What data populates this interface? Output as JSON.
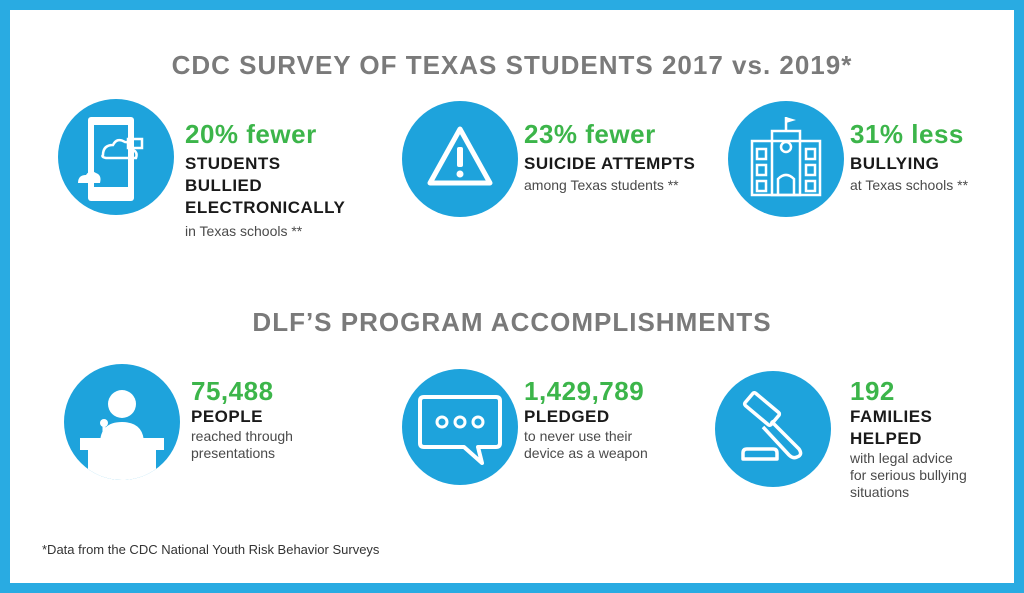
{
  "survey": {
    "title": "CDC SURVEY OF TEXAS STUDENTS 2017 vs. 2019*",
    "stats": [
      {
        "value": "20% fewer",
        "label_lines": [
          "STUDENTS",
          "BULLIED",
          "ELECTRONICALLY"
        ],
        "note": "in Texas schools **",
        "icon": "cyberbullying-phone-icon"
      },
      {
        "value": "23% fewer",
        "label_lines": [
          "SUICIDE ATTEMPTS"
        ],
        "note": "among Texas students **",
        "icon": "warning-triangle-icon"
      },
      {
        "value": "31% less",
        "label_lines": [
          "BULLYING"
        ],
        "note": "at Texas schools **",
        "icon": "school-building-icon"
      }
    ]
  },
  "program": {
    "title": "DLF’S PROGRAM ACCOMPLISHMENTS",
    "stats": [
      {
        "value": "75,488",
        "label_lines": [
          "PEOPLE"
        ],
        "note_lines": [
          "reached through",
          "presentations"
        ],
        "icon": "presenter-podium-icon"
      },
      {
        "value": "1,429,789",
        "label_lines": [
          "PLEDGED"
        ],
        "note_lines": [
          "to never use their",
          "device as a weapon"
        ],
        "icon": "chat-bubble-icon"
      },
      {
        "value": "192",
        "label_lines": [
          "FAMILIES",
          "HELPED"
        ],
        "note_lines": [
          "with legal advice",
          "for serious bullying",
          "situations"
        ],
        "icon": "gavel-icon"
      }
    ]
  },
  "footnote": "*Data from the CDC National Youth Risk Behavior Surveys",
  "colors": {
    "border": "#29abe2",
    "circle": "#1ea3dc",
    "accent": "#3cb54a",
    "heading": "#7a7a7a"
  }
}
